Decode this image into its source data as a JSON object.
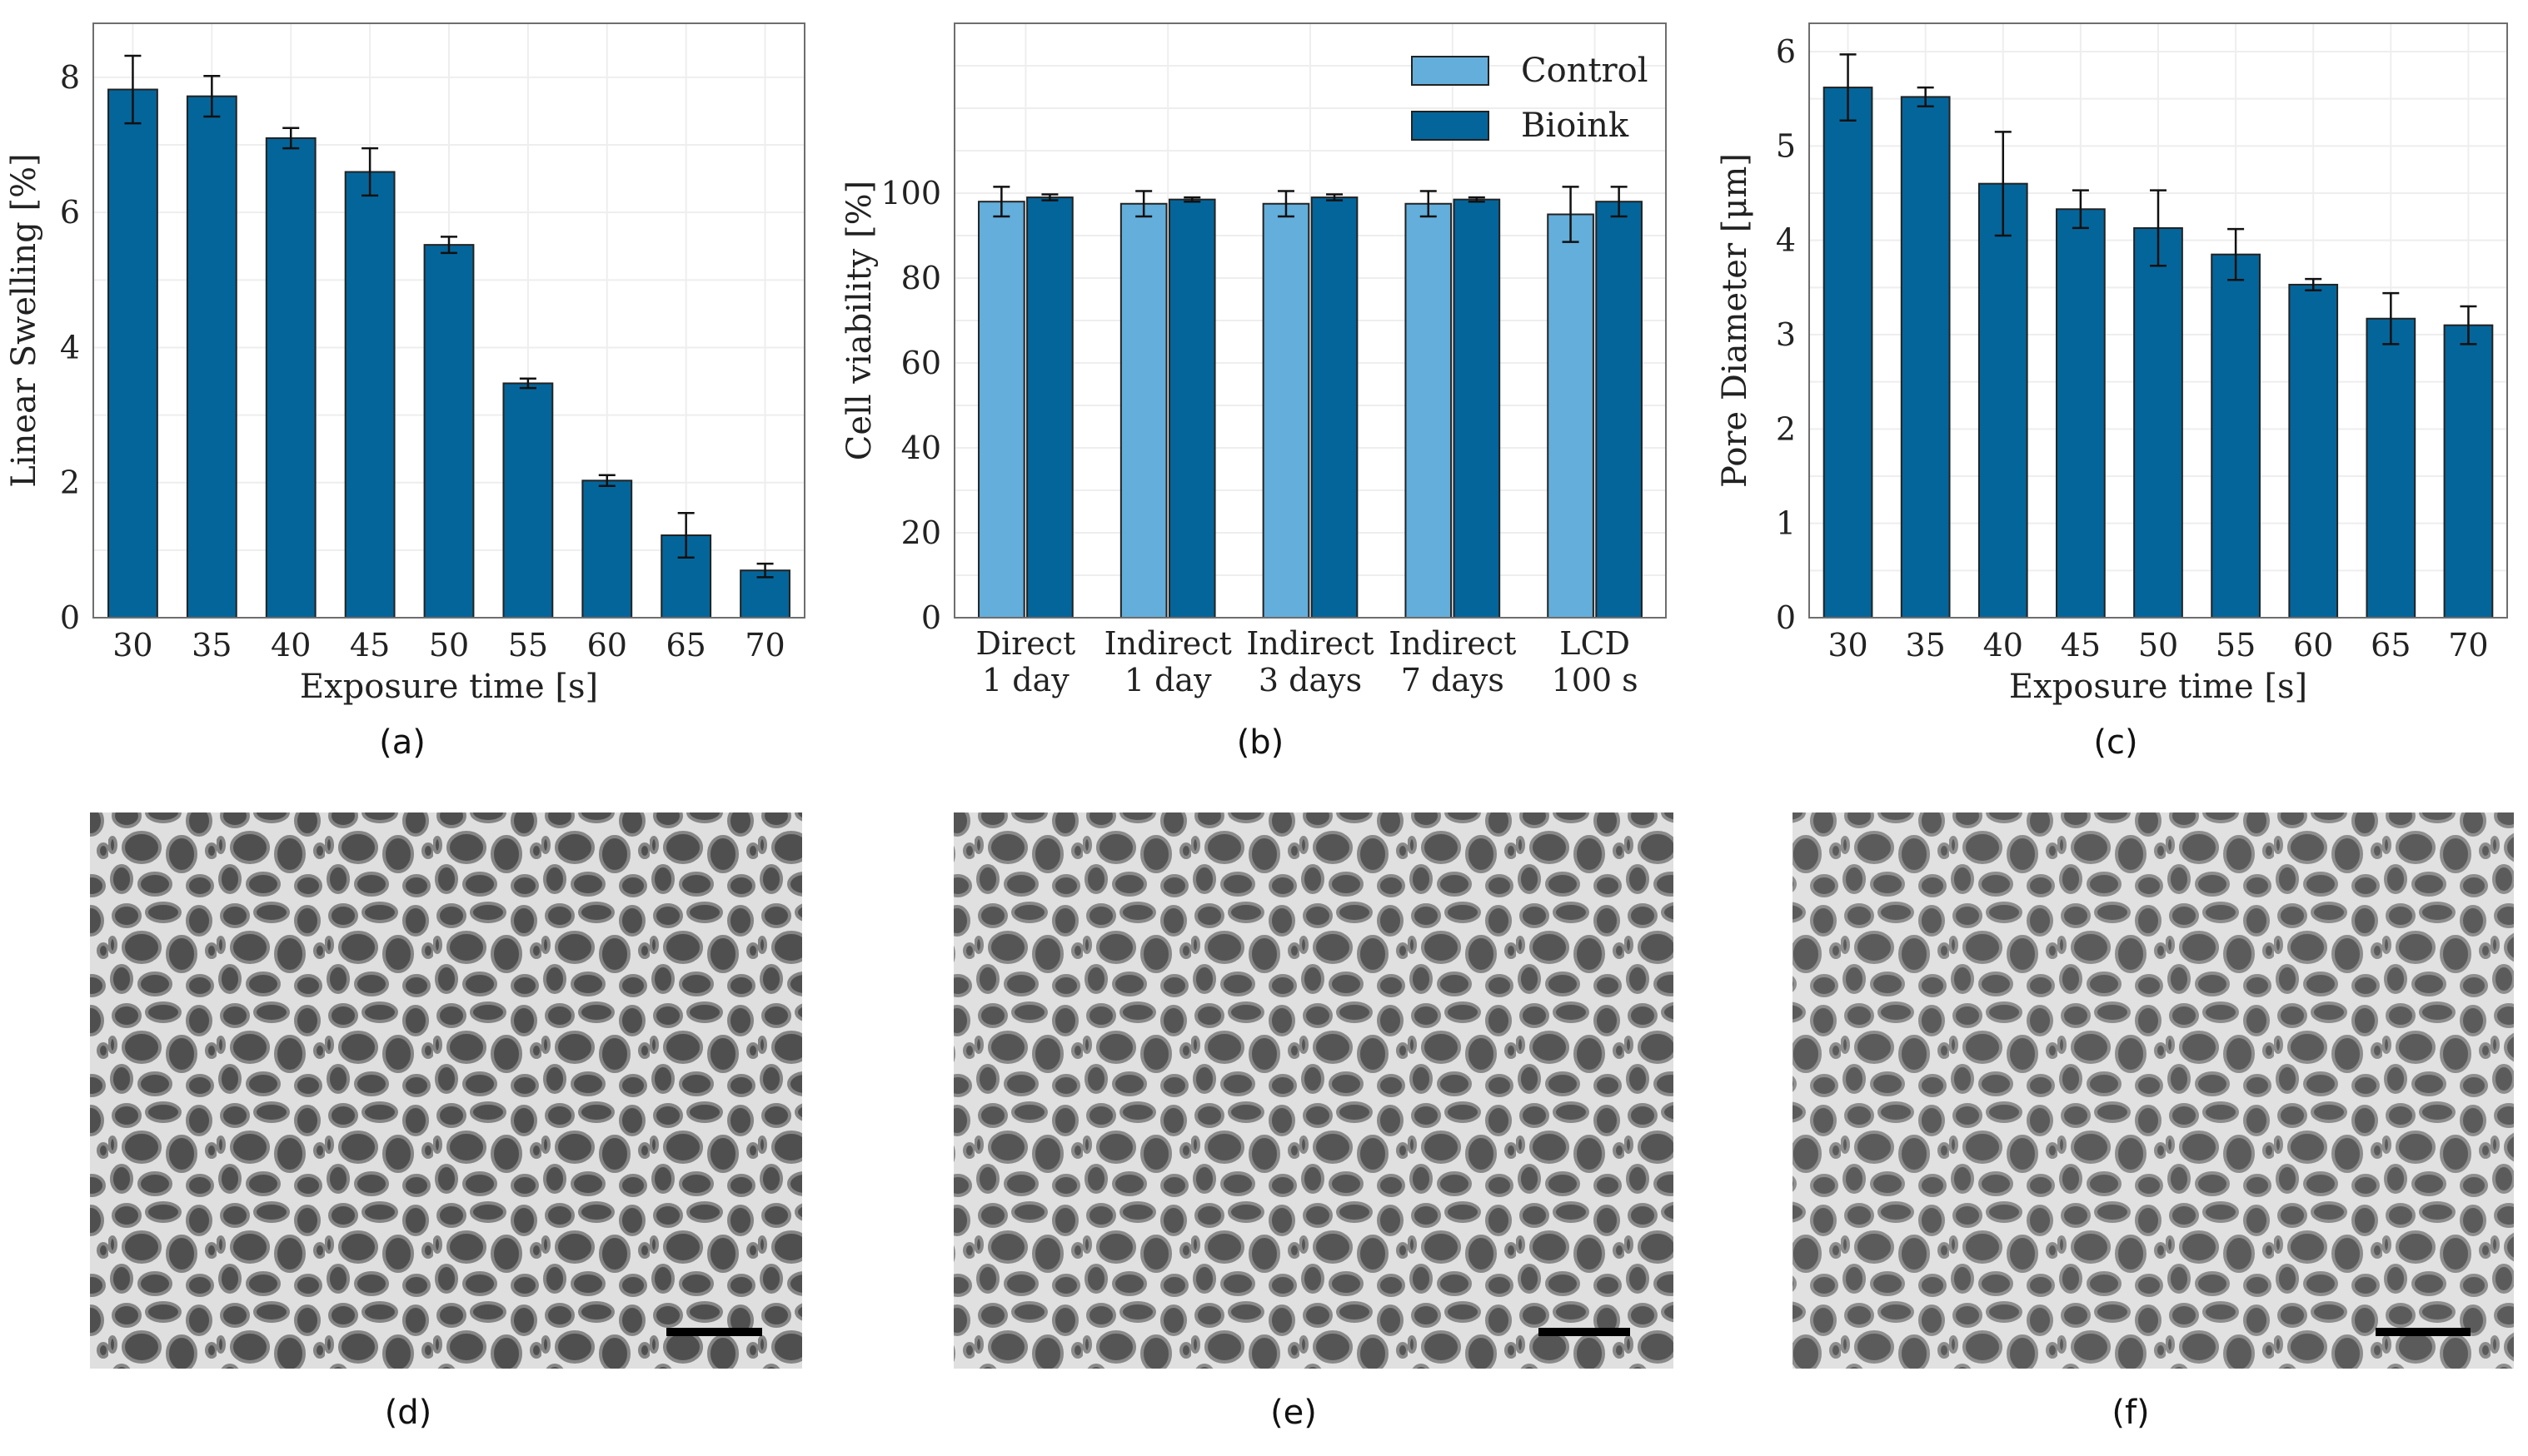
{
  "colors": {
    "bioink": "#04659a",
    "control": "#63aedb",
    "bar_stroke": "#222222",
    "grid": "#eeeeee",
    "frame": "#6e6e6e",
    "sem_background": "#7b7b7b",
    "sem_pore": "#3c3c3c",
    "sem_wall": "#e6e6e6",
    "scale_bar": "#000000"
  },
  "panel_labels": [
    "(a)",
    "(b)",
    "(c)",
    "(d)",
    "(e)",
    "(f)"
  ],
  "chart_data": [
    {
      "type": "bar",
      "panel": "(a)",
      "categories": [
        "30",
        "35",
        "40",
        "45",
        "50",
        "55",
        "60",
        "65",
        "70"
      ],
      "series": [
        {
          "values": [
            7.82,
            7.72,
            7.1,
            6.6,
            5.52,
            3.47,
            2.03,
            1.22,
            0.7
          ],
          "errors": [
            0.5,
            0.3,
            0.15,
            0.35,
            0.12,
            0.07,
            0.08,
            0.33,
            0.1
          ]
        }
      ],
      "xlabel": "Exposure time [s]",
      "ylabel": "Linear Swelling [%]",
      "ylim": [
        0,
        8.8
      ],
      "yticks": [
        0,
        2,
        4,
        6,
        8
      ],
      "grid": true
    },
    {
      "type": "bar",
      "panel": "(b)",
      "categories": [
        [
          "Direct",
          "1 day"
        ],
        [
          "Indirect",
          "1 day"
        ],
        [
          "Indirect",
          "3 days"
        ],
        [
          "Indirect",
          "7 days"
        ],
        [
          "LCD",
          "100 s"
        ]
      ],
      "series": [
        {
          "name": "Control",
          "values": [
            98,
            97.5,
            97.5,
            97.5,
            95
          ],
          "errors": [
            3.5,
            3,
            3,
            3,
            6.5
          ]
        },
        {
          "name": "Bioink",
          "values": [
            99,
            98.5,
            99,
            98.5,
            98
          ],
          "errors": [
            0.7,
            0.5,
            0.7,
            0.5,
            3.5
          ]
        }
      ],
      "xlabel": "",
      "ylabel": "Cell viability [%]",
      "ylim": [
        0,
        140
      ],
      "yticks": [
        0,
        20,
        40,
        60,
        80,
        100
      ],
      "grid": true,
      "legend": "top-right"
    },
    {
      "type": "bar",
      "panel": "(c)",
      "categories": [
        "30",
        "35",
        "40",
        "45",
        "50",
        "55",
        "60",
        "65",
        "70"
      ],
      "series": [
        {
          "values": [
            5.62,
            5.52,
            4.6,
            4.33,
            4.13,
            3.85,
            3.53,
            3.17,
            3.1
          ],
          "errors": [
            0.35,
            0.1,
            0.55,
            0.2,
            0.4,
            0.27,
            0.06,
            0.27,
            0.2
          ]
        }
      ],
      "xlabel": "Exposure time [s]",
      "ylabel": "Pore Diameter [μm]",
      "ylim": [
        0,
        6.3
      ],
      "yticks": [
        0,
        1,
        2,
        3,
        4,
        5,
        6
      ],
      "grid": true
    }
  ],
  "images": [
    {
      "panel": "(d)",
      "content": "sem-micrograph"
    },
    {
      "panel": "(e)",
      "content": "sem-micrograph"
    },
    {
      "panel": "(f)",
      "content": "sem-micrograph"
    }
  ]
}
